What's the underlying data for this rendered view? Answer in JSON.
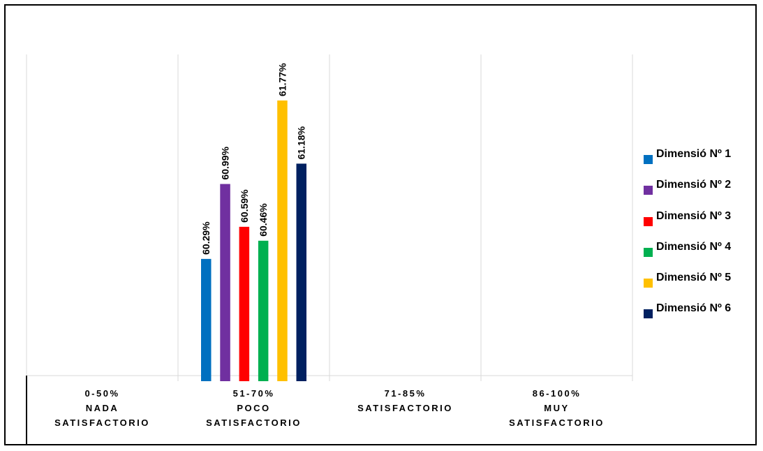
{
  "chart_data": {
    "type": "bar",
    "categories": [
      [
        "0-50%",
        "NADA",
        "SATISFACTORIO"
      ],
      [
        "51-70%",
        "POCO",
        "SATISFACTORIO"
      ],
      [
        "71-85%",
        "SATISFACTORIO"
      ],
      [
        "86-100%",
        "MUY",
        "SATISFACTORIO"
      ]
    ],
    "series": [
      {
        "name": "Dimensió Nº 1",
        "color": "#0070C0",
        "values": [
          null,
          60.29,
          null,
          null
        ],
        "labels": [
          "",
          "60.29%",
          "",
          ""
        ]
      },
      {
        "name": "Dimensió Nº 2",
        "color": "#7030A0",
        "values": [
          null,
          60.99,
          null,
          null
        ],
        "labels": [
          "",
          "60.99%",
          "",
          ""
        ]
      },
      {
        "name": "Dimensió Nº 3",
        "color": "#FF0000",
        "values": [
          null,
          60.59,
          null,
          null
        ],
        "labels": [
          "",
          "60.59%",
          "",
          ""
        ]
      },
      {
        "name": "Dimensió Nº 4",
        "color": "#00B050",
        "values": [
          null,
          60.46,
          null,
          null
        ],
        "labels": [
          "",
          "60.46%",
          "",
          ""
        ]
      },
      {
        "name": "Dimensió Nº 5",
        "color": "#FFC000",
        "values": [
          null,
          61.77,
          null,
          null
        ],
        "labels": [
          "",
          "61.77%",
          "",
          ""
        ]
      },
      {
        "name": "Dimensió Nº 6",
        "color": "#002060",
        "values": [
          null,
          61.18,
          null,
          null
        ],
        "labels": [
          "",
          "61.18%",
          "",
          ""
        ]
      }
    ],
    "ylim": [
      59.2,
      62.2
    ],
    "title": "",
    "xlabel": "",
    "ylabel": "",
    "grid": "vertical",
    "legend": "right",
    "data_labels": "rotated"
  }
}
